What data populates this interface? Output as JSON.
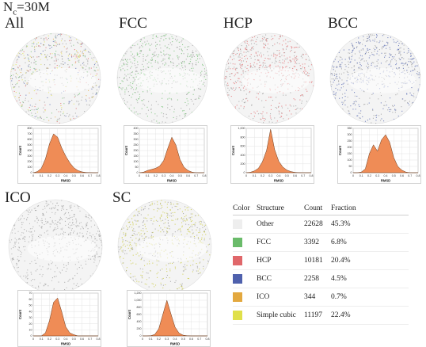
{
  "figure": {
    "nc_main": "N",
    "nc_sub": "c",
    "nc_rest": "=30M"
  },
  "panels": [
    {
      "label": "All"
    },
    {
      "label": "FCC"
    },
    {
      "label": "HCP"
    },
    {
      "label": "BCC"
    },
    {
      "label": "ICO"
    },
    {
      "label": "SC"
    }
  ],
  "histogram_axis": {
    "xlabel": "RMSD",
    "ylabel": "Count"
  },
  "legend": {
    "headers": [
      "Color",
      "Structure",
      "Count",
      "Fraction"
    ],
    "rows": [
      {
        "structure": "Other",
        "count": "22628",
        "fraction": "45.3%",
        "color": "#eeeeee"
      },
      {
        "structure": "FCC",
        "count": "3392",
        "fraction": "6.8%",
        "color": "#6abb6a"
      },
      {
        "structure": "HCP",
        "count": "10181",
        "fraction": "20.4%",
        "color": "#e0676a"
      },
      {
        "structure": "BCC",
        "count": "2258",
        "fraction": "4.5%",
        "color": "#4f61ad"
      },
      {
        "structure": "ICO",
        "count": "344",
        "fraction": "0.7%",
        "color": "#e3a83f"
      },
      {
        "structure": "Simple cubic",
        "count": "11197",
        "fraction": "22.4%",
        "color": "#e0e04a"
      }
    ]
  },
  "chart_data": [
    {
      "type": "area",
      "panel": "All",
      "xlabel": "RMSD",
      "ylabel": "Count",
      "x": [
        0.0,
        0.05,
        0.1,
        0.15,
        0.2,
        0.25,
        0.3,
        0.35,
        0.4,
        0.45,
        0.5,
        0.55,
        0.6,
        0.65,
        0.7,
        0.75,
        0.8
      ],
      "values": [
        0,
        20,
        80,
        250,
        520,
        700,
        640,
        450,
        300,
        180,
        90,
        40,
        15,
        5,
        2,
        0,
        0
      ],
      "xticks": [
        "0",
        "0.1",
        "0.2",
        "0.3",
        "0.4",
        "0.5",
        "0.6",
        "0.7",
        "0.8"
      ],
      "yticks": [
        "0",
        "100",
        "200",
        "300",
        "400",
        "500",
        "600",
        "700",
        "800"
      ],
      "ylim": [
        0,
        800
      ]
    },
    {
      "type": "area",
      "panel": "FCC",
      "xlabel": "RMSD",
      "ylabel": "Count",
      "x": [
        0.0,
        0.05,
        0.1,
        0.15,
        0.2,
        0.25,
        0.3,
        0.35,
        0.4,
        0.45,
        0.5,
        0.55,
        0.6,
        0.65,
        0.7,
        0.75,
        0.8
      ],
      "values": [
        0,
        5,
        20,
        30,
        40,
        60,
        110,
        220,
        320,
        250,
        120,
        50,
        20,
        5,
        0,
        0,
        0
      ],
      "xticks": [
        "0",
        "0.1",
        "0.2",
        "0.3",
        "0.4",
        "0.5",
        "0.6",
        "0.7",
        "0.8"
      ],
      "yticks": [
        "0",
        "50",
        "100",
        "150",
        "200",
        "250",
        "300",
        "350",
        "400"
      ],
      "ylim": [
        0,
        400
      ]
    },
    {
      "type": "area",
      "panel": "HCP",
      "xlabel": "RMSD",
      "ylabel": "Count",
      "x": [
        0.0,
        0.05,
        0.1,
        0.15,
        0.2,
        0.25,
        0.3,
        0.35,
        0.4,
        0.45,
        0.5,
        0.55,
        0.6,
        0.65,
        0.7,
        0.75,
        0.8
      ],
      "values": [
        0,
        10,
        40,
        100,
        250,
        500,
        980,
        520,
        260,
        130,
        60,
        25,
        8,
        2,
        0,
        0,
        0
      ],
      "xticks": [
        "0",
        "0.1",
        "0.2",
        "0.3",
        "0.4",
        "0.5",
        "0.6",
        "0.7",
        "0.8"
      ],
      "yticks": [
        "0",
        "200",
        "400",
        "600",
        "800",
        "1,000"
      ],
      "ylim": [
        0,
        1000
      ]
    },
    {
      "type": "area",
      "panel": "BCC",
      "xlabel": "RMSD",
      "ylabel": "Count",
      "x": [
        0.0,
        0.05,
        0.1,
        0.15,
        0.2,
        0.25,
        0.3,
        0.35,
        0.4,
        0.45,
        0.5,
        0.55,
        0.6,
        0.65,
        0.7,
        0.75,
        0.8
      ],
      "values": [
        0,
        0,
        5,
        30,
        150,
        220,
        170,
        260,
        300,
        240,
        120,
        50,
        20,
        5,
        0,
        0,
        0
      ],
      "xticks": [
        "0",
        "0.1",
        "0.2",
        "0.3",
        "0.4",
        "0.5",
        "0.6",
        "0.7",
        "0.8"
      ],
      "yticks": [
        "0",
        "50",
        "100",
        "150",
        "200",
        "250",
        "300",
        "350"
      ],
      "ylim": [
        0,
        350
      ]
    },
    {
      "type": "area",
      "panel": "ICO",
      "xlabel": "RMSD",
      "ylabel": "Count",
      "x": [
        0.0,
        0.05,
        0.1,
        0.15,
        0.2,
        0.25,
        0.3,
        0.35,
        0.4,
        0.45,
        0.5,
        0.55,
        0.6,
        0.65,
        0.7,
        0.75,
        0.8
      ],
      "values": [
        0,
        0,
        0,
        5,
        25,
        55,
        62,
        40,
        15,
        5,
        2,
        0,
        0,
        0,
        0,
        0,
        0
      ],
      "xticks": [
        "0",
        "0.1",
        "0.2",
        "0.3",
        "0.4",
        "0.5",
        "0.6",
        "0.7",
        "0.8"
      ],
      "yticks": [
        "0",
        "10",
        "20",
        "30",
        "40",
        "50",
        "60",
        "70"
      ],
      "ylim": [
        0,
        70
      ]
    },
    {
      "type": "area",
      "panel": "SC",
      "xlabel": "RMSD",
      "ylabel": "Count",
      "x": [
        0.0,
        0.05,
        0.1,
        0.15,
        0.2,
        0.25,
        0.3,
        0.35,
        0.4,
        0.45,
        0.5,
        0.55,
        0.6,
        0.65,
        0.7,
        0.75,
        0.8
      ],
      "values": [
        0,
        0,
        5,
        40,
        200,
        600,
        1000,
        620,
        250,
        80,
        20,
        5,
        0,
        0,
        0,
        0,
        0
      ],
      "xticks": [
        "0",
        "0.1",
        "0.2",
        "0.3",
        "0.4",
        "0.5",
        "0.6",
        "0.7",
        "0.8"
      ],
      "yticks": [
        "0",
        "200",
        "400",
        "600",
        "800",
        "1,000",
        "1,200"
      ],
      "ylim": [
        0,
        1200
      ]
    }
  ],
  "spheres": [
    {
      "panel": "All",
      "colors": [
        "#e0e04a",
        "#e0676a",
        "#6abb6a",
        "#4f61ad",
        "#e3a83f"
      ]
    },
    {
      "panel": "FCC",
      "colors": [
        "#6abb6a"
      ]
    },
    {
      "panel": "HCP",
      "colors": [
        "#e0676a"
      ]
    },
    {
      "panel": "BCC",
      "colors": [
        "#4f61ad"
      ]
    },
    {
      "panel": "ICO",
      "colors": [
        "#a9a9a9"
      ]
    },
    {
      "panel": "SC",
      "colors": [
        "#c8c83a"
      ]
    }
  ]
}
